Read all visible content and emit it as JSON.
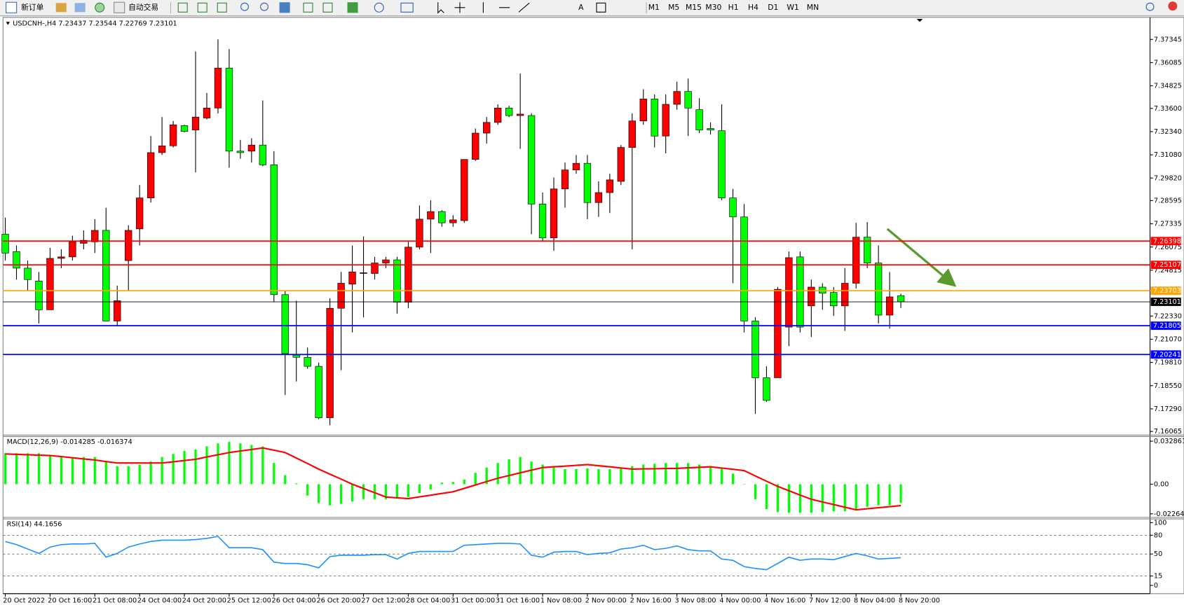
{
  "toolbar": {
    "new_order": "新订单",
    "auto_trading": "自动交易",
    "timeframes": [
      "M1",
      "M5",
      "M15",
      "M30",
      "H1",
      "H4",
      "D1",
      "W1",
      "MN"
    ]
  },
  "chart_data": [
    {
      "type": "candlestick",
      "title": "USDCNH-,H4  7.23437 7.23544 7.22769 7.23101",
      "up_color": "#ff0000",
      "down_color": "#00ff00",
      "categories": [
        "20 Oct 2022",
        null,
        null,
        null,
        "20 Oct 16:00",
        null,
        null,
        null,
        "21 Oct 08:00",
        null,
        null,
        null,
        "24 Oct 04:00",
        null,
        null,
        null,
        "24 Oct 20:00",
        null,
        null,
        null,
        "25 Oct 12:00",
        null,
        null,
        null,
        "26 Oct 04:00",
        null,
        null,
        null,
        "26 Oct 20:00",
        null,
        null,
        null,
        "27 Oct 12:00",
        null,
        null,
        null,
        "28 Oct 04:00",
        null,
        null,
        null,
        "31 Oct 00:00",
        null,
        null,
        null,
        "31 Oct 16:00",
        null,
        null,
        null,
        "1 Nov 08:00",
        null,
        null,
        null,
        "2 Nov 00:00",
        null,
        null,
        null,
        "2 Nov 16:00",
        null,
        null,
        null,
        "3 Nov 08:00",
        null,
        null,
        null,
        "4 Nov 00:00",
        null,
        null,
        null,
        "4 Nov 16:00",
        null,
        null,
        null,
        "7 Nov 12:00",
        null,
        null,
        null,
        "8 Nov 04:00",
        null,
        null,
        null,
        "8 Nov 20:00"
      ],
      "ohlc": [
        [
          7.2677,
          7.2767,
          7.2534,
          7.2575
        ],
        [
          7.2583,
          7.2616,
          7.2431,
          7.2493
        ],
        [
          7.2493,
          7.2534,
          7.237,
          7.2431
        ],
        [
          7.2423,
          7.2472,
          7.2193,
          7.2267
        ],
        [
          7.2267,
          7.2603,
          7.2267,
          7.2546
        ],
        [
          7.2546,
          7.2595,
          7.2493,
          7.2554
        ],
        [
          7.2554,
          7.2669,
          7.2534,
          7.2636
        ],
        [
          7.2628,
          7.2698,
          7.2595,
          7.2644
        ],
        [
          7.2636,
          7.2759,
          7.2575,
          7.2698
        ],
        [
          7.2698,
          7.2821,
          7.2206,
          7.2206
        ],
        [
          7.2206,
          7.2398,
          7.2177,
          7.2316
        ],
        [
          7.2534,
          7.2726,
          7.237,
          7.2698
        ],
        [
          7.2706,
          7.2944,
          7.2616,
          7.2874
        ],
        [
          7.2874,
          7.321,
          7.2849,
          7.312
        ],
        [
          7.312,
          7.3313,
          7.3107,
          7.3157
        ],
        [
          7.3157,
          7.3292,
          7.3148,
          7.3271
        ],
        [
          7.3267,
          7.3271,
          7.323,
          7.3235
        ],
        [
          7.3243,
          7.3669,
          7.3013,
          7.3313
        ],
        [
          7.3308,
          7.3444,
          7.33,
          7.3362
        ],
        [
          7.3362,
          7.3735,
          7.3333,
          7.3579
        ],
        [
          7.3579,
          7.3682,
          7.3038,
          7.3128
        ],
        [
          7.3128,
          7.3189,
          7.3087,
          7.312
        ],
        [
          7.3128,
          7.3198,
          7.3066,
          7.3161
        ],
        [
          7.3161,
          7.3403,
          7.3046,
          7.3054
        ],
        [
          7.3054,
          7.3128,
          7.2308,
          7.2349
        ],
        [
          7.2349,
          7.237,
          7.1804,
          7.2029
        ],
        [
          7.2021,
          7.2316,
          7.1878,
          7.2009
        ],
        [
          7.2009,
          7.2062,
          7.1947,
          7.196
        ],
        [
          7.196,
          7.198,
          7.1673,
          7.1681
        ],
        [
          7.1681,
          7.2329,
          7.164,
          7.2275
        ],
        [
          7.2275,
          7.2472,
          7.1939,
          7.2411
        ],
        [
          7.2406,
          7.2616,
          7.2144,
          7.2472
        ],
        [
          7.2464,
          7.2665,
          7.2226,
          7.2468
        ],
        [
          7.2464,
          7.2554,
          7.2431,
          7.2521
        ],
        [
          7.2521,
          7.2554,
          7.2493,
          7.2538
        ],
        [
          7.2538,
          7.2554,
          7.2246,
          7.2308
        ],
        [
          7.2308,
          7.2636,
          7.2275,
          7.2607
        ],
        [
          7.2607,
          7.2833,
          7.2595,
          7.2759
        ],
        [
          7.2759,
          7.2862,
          7.2575,
          7.28
        ],
        [
          7.28,
          7.2808,
          7.2718,
          7.2739
        ],
        [
          7.2739,
          7.278,
          7.2718,
          7.2755
        ],
        [
          7.2751,
          7.3083,
          7.2739,
          7.3083
        ],
        [
          7.3083,
          7.3251,
          7.3075,
          7.3226
        ],
        [
          7.3226,
          7.3313,
          7.3169,
          7.3284
        ],
        [
          7.3284,
          7.3382,
          7.3271,
          7.3362
        ],
        [
          7.3362,
          7.3374,
          7.3313,
          7.3321
        ],
        [
          7.3321,
          7.355,
          7.314,
          7.3329
        ],
        [
          7.3321,
          7.3333,
          7.2677,
          7.2841
        ],
        [
          7.2841,
          7.2903,
          7.2636,
          7.2657
        ],
        [
          7.2657,
          7.2985,
          7.2587,
          7.2923
        ],
        [
          7.2923,
          7.3066,
          7.2821,
          7.3026
        ],
        [
          7.3026,
          7.3107,
          7.3005,
          7.3062
        ],
        [
          7.3062,
          7.3107,
          7.2759,
          7.2849
        ],
        [
          7.2849,
          7.2964,
          7.2771,
          7.2903
        ],
        [
          7.2903,
          7.3005,
          7.2792,
          7.2972
        ],
        [
          7.2964,
          7.3161,
          7.2944,
          7.3148
        ],
        [
          7.3148,
          7.3333,
          7.2595,
          7.3292
        ],
        [
          7.3292,
          7.3464,
          7.3271,
          7.3411
        ],
        [
          7.3411,
          7.3436,
          7.3148,
          7.321
        ],
        [
          7.321,
          7.3436,
          7.3116,
          7.3382
        ],
        [
          7.3382,
          7.3505,
          7.3353,
          7.3452
        ],
        [
          7.3452,
          7.3522,
          7.321,
          7.3362
        ],
        [
          7.3353,
          7.3415,
          7.3226,
          7.3243
        ],
        [
          7.3251,
          7.3284,
          7.3218,
          7.3243
        ],
        [
          7.3239,
          7.3382,
          7.2862,
          7.2874
        ],
        [
          7.2874,
          7.2923,
          7.2411,
          7.2771
        ],
        [
          7.2771,
          7.2841,
          7.2144,
          7.2206
        ],
        [
          7.2206,
          7.2226,
          7.1701,
          7.1898
        ],
        [
          7.1898,
          7.196,
          7.1767,
          7.1775
        ],
        [
          7.1898,
          7.239,
          7.1898,
          7.2378
        ],
        [
          7.2173,
          7.2583,
          7.207,
          7.255
        ],
        [
          7.2554,
          7.2583,
          7.2144,
          7.2173
        ],
        [
          7.2288,
          7.2431,
          7.2119,
          7.239
        ],
        [
          7.239,
          7.2411,
          7.2267,
          7.2357
        ],
        [
          7.2361,
          7.239,
          7.2234,
          7.2288
        ],
        [
          7.2288,
          7.2493,
          7.2152,
          7.2411
        ],
        [
          7.2411,
          7.2739,
          7.2382,
          7.2661
        ],
        [
          7.2661,
          7.2743,
          7.2493,
          7.2521
        ],
        [
          7.2521,
          7.2616,
          7.2193,
          7.2238
        ],
        [
          7.2238,
          7.2472,
          7.2165,
          7.2337
        ],
        [
          7.23437,
          7.23544,
          7.22769,
          7.23101
        ]
      ],
      "levels": [
        {
          "value": 7.26398,
          "color": "#ff0000"
        },
        {
          "value": 7.25107,
          "color": "#ff0000"
        },
        {
          "value": 7.23703,
          "color": "#ffa500"
        },
        {
          "value": 7.23101,
          "color": "#000000"
        },
        {
          "value": 7.21805,
          "color": "#0000ff"
        },
        {
          "value": 7.20241,
          "color": "#0000ff"
        }
      ],
      "ylim": [
        7.1591,
        7.385
      ],
      "yticks": [
        7.37345,
        7.36085,
        7.34825,
        {
          "value": 7.336,
          "label": "7.33600"
        },
        {
          "value": 7.3234,
          "label": "7.32340"
        },
        {
          "value": 7.3108,
          "label": "7.31080"
        },
        {
          "value": 7.2982,
          "label": "7.29820"
        },
        7.28595,
        7.27335,
        7.26075,
        7.24815,
        {
          "value": 7.2233,
          "label": "7.22330"
        },
        {
          "value": 7.2107,
          "label": "7.21070"
        },
        {
          "value": 7.1981,
          "label": "7.19810"
        },
        {
          "value": 7.1855,
          "label": "7.18550"
        },
        {
          "value": 7.1729,
          "label": "7.17290"
        },
        7.16065
      ]
    },
    {
      "type": "macd",
      "title": "MACD(12,26,9) -0.014285 -0.016374",
      "series": [
        {
          "color": "#00ff00",
          "values": [
            0.0237,
            0.0237,
            0.0237,
            0.0237,
            0.0225,
            0.0213,
            0.0202,
            0.0208,
            0.0208,
            0.0173,
            0.0138,
            0.0138,
            0.015,
            0.0173,
            0.0208,
            0.0231,
            0.0254,
            0.0265,
            0.0289,
            0.0312,
            0.0323,
            0.0312,
            0.03,
            0.0289,
            0.0162,
            0.0069,
            0.0006,
            -0.0087,
            -0.0144,
            -0.0162,
            -0.015,
            -0.0133,
            -0.0115,
            -0.0115,
            -0.0115,
            -0.011,
            -0.0098,
            -0.0069,
            -0.004,
            0.0012,
            0.0017,
            0.0035,
            0.0087,
            0.0127,
            0.0162,
            0.019,
            0.0208,
            0.0173,
            0.015,
            0.0127,
            0.0115,
            0.0115,
            0.0121,
            0.0115,
            0.0115,
            0.0127,
            0.0138,
            0.015,
            0.0156,
            0.0162,
            0.0162,
            0.0162,
            0.015,
            0.0138,
            0.0127,
            0.0081,
            0,
            -0.0115,
            -0.019,
            -0.0213,
            -0.0219,
            -0.0219,
            -0.0219,
            -0.0213,
            -0.0208,
            -0.0208,
            -0.0196,
            -0.0173,
            -0.0162,
            -0.0162,
            -0.014285
          ]
        },
        {
          "color": "#ff0000",
          "values": [
            0.0231,
            0.0228,
            0.0225,
            0.0222,
            0.0219,
            0.0211,
            0.0202,
            0.0193,
            0.0185,
            0.0173,
            0.0162,
            0.0162,
            0.0162,
            0.0162,
            0.0162,
            0.0171,
            0.0181,
            0.019,
            0.0208,
            0.0225,
            0.0242,
            0.0254,
            0.0265,
            0.0277,
            0.026,
            0.0242,
            0.02,
            0.0158,
            0.0115,
            0.0077,
            0.0039,
            0,
            -0.0033,
            -0.0065,
            -0.0098,
            -0.0104,
            -0.011,
            -0.0097,
            -0.0084,
            -0.0071,
            -0.0058,
            -0.0032,
            -0.0006,
            0.002,
            0.0046,
            0.0066,
            0.0087,
            0.0107,
            0.0127,
            0.0133,
            0.0138,
            0.0144,
            0.015,
            0.0141,
            0.0133,
            0.0124,
            0.0115,
            0.0117,
            0.0118,
            0.012,
            0.0121,
            0.0125,
            0.0129,
            0.0133,
            0.0123,
            0.0114,
            0.0104,
            0.0063,
            0.0023,
            -0.0017,
            -0.005,
            -0.0083,
            -0.0115,
            -0.0136,
            -0.0156,
            -0.0176,
            -0.0196,
            -0.0188,
            -0.018,
            -0.0172,
            -0.016374
          ]
        }
      ],
      "ylim": [
        -0.0248,
        0.0364
      ],
      "yticks": [
        0.032861,
        {
          "value": 0,
          "label": "0.00"
        },
        -0.022641
      ]
    },
    {
      "type": "line",
      "title": "RSI(14) 44.1656",
      "color": "#1e90ff",
      "values": [
        70,
        65,
        58,
        51,
        61,
        65,
        66,
        66,
        67,
        45,
        51,
        61,
        66,
        70,
        72,
        72,
        72,
        73,
        75,
        78,
        60,
        60,
        60,
        57,
        37,
        35,
        35,
        33,
        28,
        46,
        48,
        48,
        48,
        49,
        49,
        42,
        51,
        54,
        54,
        54,
        54,
        64,
        65,
        66,
        67,
        67,
        66,
        48,
        45,
        53,
        54,
        54,
        49,
        51,
        52,
        58,
        60,
        64,
        57,
        59,
        63,
        57,
        55,
        55,
        42,
        40,
        30,
        27,
        25,
        35,
        45,
        40,
        42,
        42,
        41,
        46,
        51,
        47,
        42,
        43,
        44.1656
      ],
      "levels": [
        80,
        50,
        15
      ],
      "ylim": [
        -12,
        106
      ],
      "yticks": [
        100,
        80,
        50,
        15,
        0
      ]
    }
  ]
}
